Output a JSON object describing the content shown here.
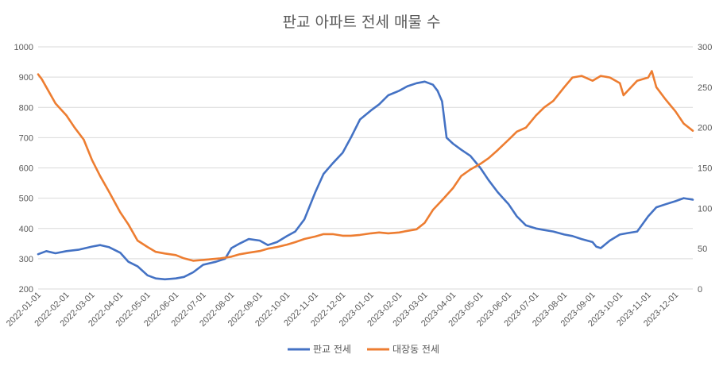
{
  "chart_data": {
    "type": "line",
    "title": "판교 아파트 전세 매물 수",
    "xlabel": "",
    "ylabel": "",
    "x_start": "2022-01-01",
    "x_end": "2023-12-20",
    "x_tick_labels": [
      "2022-01-01",
      "2022-02-01",
      "2022-03-01",
      "2022-04-01",
      "2022-05-01",
      "2022-06-01",
      "2022-07-01",
      "2022-08-01",
      "2022-09-01",
      "2022-10-01",
      "2022-11-01",
      "2022-12-01",
      "2023-01-01",
      "2023-02-01",
      "2023-03-01",
      "2023-04-01",
      "2023-05-01",
      "2023-06-01",
      "2023-07-01",
      "2023-08-01",
      "2023-09-01",
      "2023-10-01",
      "2023-11-01",
      "2023-12-01"
    ],
    "y_left": {
      "min": 200,
      "max": 1000,
      "ticks": [
        "200",
        "300",
        "400",
        "500",
        "600",
        "700",
        "800",
        "900",
        "1000"
      ]
    },
    "y_right": {
      "min": 0,
      "max": 300,
      "ticks": [
        "0",
        "50",
        "100",
        "150",
        "200",
        "250",
        "300"
      ]
    },
    "grid": true,
    "legend_position": "bottom",
    "series": [
      {
        "name": "판교 전세",
        "axis": "left",
        "color": "#4472C4",
        "points": [
          [
            "2022-01-01",
            315
          ],
          [
            "2022-01-10",
            325
          ],
          [
            "2022-01-20",
            318
          ],
          [
            "2022-02-01",
            325
          ],
          [
            "2022-02-15",
            330
          ],
          [
            "2022-03-01",
            340
          ],
          [
            "2022-03-10",
            345
          ],
          [
            "2022-03-20",
            338
          ],
          [
            "2022-04-01",
            320
          ],
          [
            "2022-04-10",
            290
          ],
          [
            "2022-04-20",
            275
          ],
          [
            "2022-05-01",
            245
          ],
          [
            "2022-05-10",
            235
          ],
          [
            "2022-05-20",
            232
          ],
          [
            "2022-06-01",
            235
          ],
          [
            "2022-06-10",
            240
          ],
          [
            "2022-06-20",
            255
          ],
          [
            "2022-07-01",
            280
          ],
          [
            "2022-07-15",
            290
          ],
          [
            "2022-07-25",
            300
          ],
          [
            "2022-08-01",
            335
          ],
          [
            "2022-08-10",
            350
          ],
          [
            "2022-08-20",
            365
          ],
          [
            "2022-09-01",
            360
          ],
          [
            "2022-09-10",
            345
          ],
          [
            "2022-09-20",
            355
          ],
          [
            "2022-10-01",
            375
          ],
          [
            "2022-10-10",
            390
          ],
          [
            "2022-10-20",
            430
          ],
          [
            "2022-11-01",
            520
          ],
          [
            "2022-11-10",
            580
          ],
          [
            "2022-11-20",
            615
          ],
          [
            "2022-12-01",
            650
          ],
          [
            "2022-12-10",
            700
          ],
          [
            "2022-12-20",
            760
          ],
          [
            "2023-01-01",
            790
          ],
          [
            "2023-01-10",
            810
          ],
          [
            "2023-01-20",
            840
          ],
          [
            "2023-02-01",
            855
          ],
          [
            "2023-02-10",
            870
          ],
          [
            "2023-02-20",
            880
          ],
          [
            "2023-03-01",
            885
          ],
          [
            "2023-03-10",
            875
          ],
          [
            "2023-03-15",
            855
          ],
          [
            "2023-03-20",
            820
          ],
          [
            "2023-03-25",
            700
          ],
          [
            "2023-04-01",
            680
          ],
          [
            "2023-04-10",
            660
          ],
          [
            "2023-04-20",
            640
          ],
          [
            "2023-05-01",
            600
          ],
          [
            "2023-05-10",
            560
          ],
          [
            "2023-05-20",
            520
          ],
          [
            "2023-06-01",
            480
          ],
          [
            "2023-06-10",
            440
          ],
          [
            "2023-06-20",
            410
          ],
          [
            "2023-07-01",
            400
          ],
          [
            "2023-07-10",
            395
          ],
          [
            "2023-07-20",
            390
          ],
          [
            "2023-08-01",
            380
          ],
          [
            "2023-08-10",
            375
          ],
          [
            "2023-08-20",
            365
          ],
          [
            "2023-09-01",
            355
          ],
          [
            "2023-09-05",
            340
          ],
          [
            "2023-09-10",
            335
          ],
          [
            "2023-09-20",
            360
          ],
          [
            "2023-10-01",
            380
          ],
          [
            "2023-10-10",
            385
          ],
          [
            "2023-10-20",
            390
          ],
          [
            "2023-11-01",
            440
          ],
          [
            "2023-11-10",
            470
          ],
          [
            "2023-11-20",
            480
          ],
          [
            "2023-12-01",
            490
          ],
          [
            "2023-12-10",
            500
          ],
          [
            "2023-12-20",
            495
          ]
        ]
      },
      {
        "name": "대장동 전세",
        "axis": "right",
        "color": "#ED7D31",
        "points": [
          [
            "2022-01-01",
            266
          ],
          [
            "2022-01-05",
            260
          ],
          [
            "2022-01-10",
            250
          ],
          [
            "2022-01-20",
            230
          ],
          [
            "2022-02-01",
            215
          ],
          [
            "2022-02-10",
            200
          ],
          [
            "2022-02-20",
            185
          ],
          [
            "2022-03-01",
            160
          ],
          [
            "2022-03-10",
            140
          ],
          [
            "2022-03-20",
            120
          ],
          [
            "2022-04-01",
            95
          ],
          [
            "2022-04-10",
            80
          ],
          [
            "2022-04-20",
            60
          ],
          [
            "2022-05-01",
            52
          ],
          [
            "2022-05-10",
            46
          ],
          [
            "2022-05-20",
            44
          ],
          [
            "2022-06-01",
            42
          ],
          [
            "2022-06-10",
            38
          ],
          [
            "2022-06-20",
            35
          ],
          [
            "2022-07-01",
            36
          ],
          [
            "2022-07-10",
            37
          ],
          [
            "2022-07-20",
            38
          ],
          [
            "2022-08-01",
            40
          ],
          [
            "2022-08-10",
            43
          ],
          [
            "2022-08-20",
            45
          ],
          [
            "2022-09-01",
            47
          ],
          [
            "2022-09-10",
            50
          ],
          [
            "2022-09-20",
            52
          ],
          [
            "2022-10-01",
            55
          ],
          [
            "2022-10-10",
            58
          ],
          [
            "2022-10-20",
            62
          ],
          [
            "2022-11-01",
            65
          ],
          [
            "2022-11-10",
            68
          ],
          [
            "2022-11-20",
            68
          ],
          [
            "2022-12-01",
            66
          ],
          [
            "2022-12-10",
            66
          ],
          [
            "2022-12-20",
            67
          ],
          [
            "2023-01-01",
            69
          ],
          [
            "2023-01-10",
            70
          ],
          [
            "2023-01-20",
            69
          ],
          [
            "2023-02-01",
            70
          ],
          [
            "2023-02-10",
            72
          ],
          [
            "2023-02-20",
            74
          ],
          [
            "2023-03-01",
            82
          ],
          [
            "2023-03-10",
            98
          ],
          [
            "2023-03-20",
            110
          ],
          [
            "2023-04-01",
            125
          ],
          [
            "2023-04-10",
            140
          ],
          [
            "2023-04-20",
            148
          ],
          [
            "2023-05-01",
            155
          ],
          [
            "2023-05-10",
            162
          ],
          [
            "2023-05-20",
            172
          ],
          [
            "2023-06-01",
            185
          ],
          [
            "2023-06-10",
            195
          ],
          [
            "2023-06-20",
            200
          ],
          [
            "2023-07-01",
            215
          ],
          [
            "2023-07-10",
            225
          ],
          [
            "2023-07-20",
            233
          ],
          [
            "2023-08-01",
            250
          ],
          [
            "2023-08-10",
            262
          ],
          [
            "2023-08-20",
            264
          ],
          [
            "2023-09-01",
            258
          ],
          [
            "2023-09-10",
            264
          ],
          [
            "2023-09-20",
            262
          ],
          [
            "2023-10-01",
            255
          ],
          [
            "2023-10-05",
            240
          ],
          [
            "2023-10-10",
            246
          ],
          [
            "2023-10-20",
            258
          ],
          [
            "2023-11-01",
            262
          ],
          [
            "2023-11-05",
            270
          ],
          [
            "2023-11-10",
            250
          ],
          [
            "2023-11-20",
            235
          ],
          [
            "2023-12-01",
            220
          ],
          [
            "2023-12-10",
            205
          ],
          [
            "2023-12-20",
            196
          ]
        ]
      }
    ]
  }
}
